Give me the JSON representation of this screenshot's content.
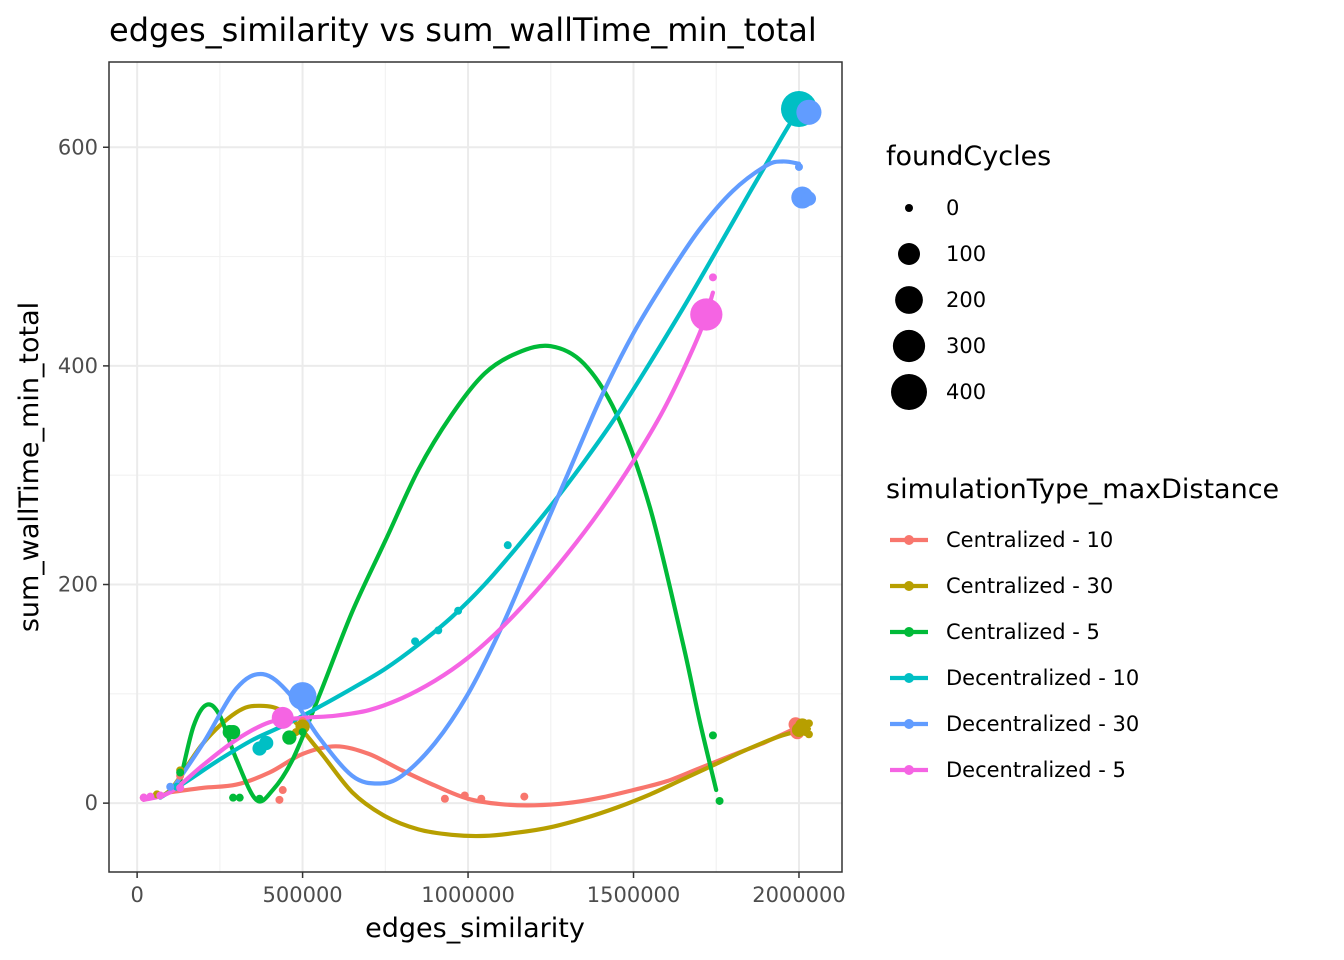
{
  "chart_data": {
    "type": "scatter",
    "title": "edges_similarity  vs  sum_wallTime_min_total",
    "xlabel": "edges_similarity",
    "ylabel": "sum_wallTime_min_total",
    "xlim": [
      -85000,
      2130000
    ],
    "ylim": [
      -63,
      678
    ],
    "x_ticks": [
      0,
      500000,
      1000000,
      1500000,
      2000000
    ],
    "x_tick_labels": [
      "0",
      "500000",
      "1000000",
      "1500000",
      "2000000"
    ],
    "y_ticks": [
      0,
      200,
      400,
      600
    ],
    "y_tick_labels": [
      "0",
      "200",
      "400",
      "600"
    ],
    "grid": true,
    "legend_position": "right",
    "size_legend": {
      "title": "foundCycles",
      "values": [
        0,
        100,
        200,
        300,
        400
      ],
      "labels": [
        "0",
        "100",
        "200",
        "300",
        "400"
      ]
    },
    "color_legend": {
      "title": "simulationType_maxDistance"
    },
    "series": [
      {
        "name": "Centralized - 10",
        "color": "#F8766D",
        "points": [
          [
            20000,
            5,
            0
          ],
          [
            130000,
            25,
            0
          ],
          [
            430000,
            3,
            0
          ],
          [
            440000,
            12,
            0
          ],
          [
            500000,
            75,
            0
          ],
          [
            930000,
            4,
            0
          ],
          [
            990000,
            7,
            0
          ],
          [
            1040000,
            4,
            0
          ],
          [
            1170000,
            6,
            0
          ],
          [
            1990000,
            72,
            20
          ],
          [
            1995000,
            65,
            20
          ]
        ],
        "smooth": [
          [
            100000,
            10
          ],
          [
            200000,
            14
          ],
          [
            300000,
            17
          ],
          [
            400000,
            28
          ],
          [
            500000,
            45
          ],
          [
            600000,
            52
          ],
          [
            700000,
            45
          ],
          [
            800000,
            30
          ],
          [
            900000,
            16
          ],
          [
            1000000,
            4
          ],
          [
            1100000,
            -1
          ],
          [
            1200000,
            -2
          ],
          [
            1300000,
            0
          ],
          [
            1400000,
            5
          ],
          [
            1500000,
            12
          ],
          [
            1600000,
            20
          ],
          [
            1700000,
            32
          ],
          [
            1800000,
            44
          ],
          [
            1900000,
            56
          ],
          [
            2000000,
            70
          ]
        ]
      },
      {
        "name": "Centralized - 30",
        "color": "#B79F00",
        "points": [
          [
            60000,
            8,
            0
          ],
          [
            130000,
            30,
            0
          ],
          [
            480000,
            65,
            0
          ],
          [
            500000,
            70,
            20
          ],
          [
            2000000,
            67,
            20
          ],
          [
            2010000,
            71,
            20
          ],
          [
            2020000,
            65,
            0
          ],
          [
            2030000,
            73,
            0
          ],
          [
            2030000,
            63,
            0
          ]
        ],
        "smooth": [
          [
            40000,
            5
          ],
          [
            100000,
            12
          ],
          [
            200000,
            55
          ],
          [
            300000,
            83
          ],
          [
            370000,
            89
          ],
          [
            450000,
            82
          ],
          [
            550000,
            48
          ],
          [
            650000,
            10
          ],
          [
            750000,
            -12
          ],
          [
            850000,
            -24
          ],
          [
            950000,
            -29
          ],
          [
            1050000,
            -30
          ],
          [
            1150000,
            -27
          ],
          [
            1250000,
            -22
          ],
          [
            1350000,
            -14
          ],
          [
            1450000,
            -4
          ],
          [
            1550000,
            8
          ],
          [
            1650000,
            22
          ],
          [
            1750000,
            36
          ],
          [
            1850000,
            50
          ],
          [
            1950000,
            62
          ],
          [
            2030000,
            68
          ]
        ]
      },
      {
        "name": "Centralized - 5",
        "color": "#00BA38",
        "points": [
          [
            130000,
            28,
            0
          ],
          [
            280000,
            65,
            20
          ],
          [
            290000,
            65,
            20
          ],
          [
            290000,
            5,
            0
          ],
          [
            310000,
            5,
            0
          ],
          [
            370000,
            4,
            0
          ],
          [
            460000,
            60,
            20
          ],
          [
            500000,
            65,
            0
          ],
          [
            1740000,
            62,
            0
          ],
          [
            1760000,
            2,
            0
          ]
        ],
        "smooth": [
          [
            130000,
            20
          ],
          [
            170000,
            70
          ],
          [
            210000,
            90
          ],
          [
            250000,
            80
          ],
          [
            300000,
            40
          ],
          [
            360000,
            3
          ],
          [
            410000,
            12
          ],
          [
            470000,
            40
          ],
          [
            550000,
            98
          ],
          [
            650000,
            175
          ],
          [
            750000,
            240
          ],
          [
            850000,
            305
          ],
          [
            950000,
            355
          ],
          [
            1050000,
            393
          ],
          [
            1150000,
            412
          ],
          [
            1250000,
            418
          ],
          [
            1350000,
            402
          ],
          [
            1450000,
            355
          ],
          [
            1550000,
            270
          ],
          [
            1650000,
            145
          ],
          [
            1700000,
            75
          ],
          [
            1750000,
            12
          ]
        ]
      },
      {
        "name": "Decentralized - 10",
        "color": "#00BFC4",
        "points": [
          [
            120000,
            15,
            0
          ],
          [
            370000,
            50,
            20
          ],
          [
            390000,
            55,
            20
          ],
          [
            840000,
            148,
            0
          ],
          [
            910000,
            158,
            0
          ],
          [
            970000,
            176,
            0
          ],
          [
            1120000,
            236,
            0
          ],
          [
            2000000,
            635,
            400
          ]
        ],
        "smooth": [
          [
            70000,
            5
          ],
          [
            150000,
            20
          ],
          [
            250000,
            40
          ],
          [
            350000,
            58
          ],
          [
            450000,
            72
          ],
          [
            550000,
            88
          ],
          [
            650000,
            105
          ],
          [
            750000,
            123
          ],
          [
            850000,
            145
          ],
          [
            950000,
            170
          ],
          [
            1050000,
            200
          ],
          [
            1150000,
            235
          ],
          [
            1250000,
            272
          ],
          [
            1350000,
            312
          ],
          [
            1450000,
            355
          ],
          [
            1550000,
            403
          ],
          [
            1650000,
            453
          ],
          [
            1750000,
            505
          ],
          [
            1850000,
            558
          ],
          [
            1950000,
            610
          ],
          [
            2000000,
            635
          ]
        ]
      },
      {
        "name": "Decentralized - 30",
        "color": "#619CFF",
        "points": [
          [
            100000,
            15,
            0
          ],
          [
            500000,
            98,
            200
          ],
          [
            2000000,
            582,
            0
          ],
          [
            2010000,
            554,
            100
          ],
          [
            2020000,
            555,
            20
          ],
          [
            2030000,
            553,
            20
          ],
          [
            2030000,
            632,
            150
          ]
        ],
        "smooth": [
          [
            100000,
            10
          ],
          [
            200000,
            55
          ],
          [
            300000,
            105
          ],
          [
            380000,
            118
          ],
          [
            460000,
            100
          ],
          [
            550000,
            60
          ],
          [
            650000,
            25
          ],
          [
            730000,
            18
          ],
          [
            800000,
            25
          ],
          [
            900000,
            55
          ],
          [
            1000000,
            100
          ],
          [
            1100000,
            160
          ],
          [
            1200000,
            230
          ],
          [
            1300000,
            300
          ],
          [
            1400000,
            370
          ],
          [
            1500000,
            430
          ],
          [
            1600000,
            480
          ],
          [
            1700000,
            525
          ],
          [
            1800000,
            560
          ],
          [
            1900000,
            583
          ],
          [
            1950000,
            587
          ],
          [
            2000000,
            585
          ]
        ]
      },
      {
        "name": "Decentralized - 5",
        "color": "#F564E3",
        "points": [
          [
            20000,
            5,
            0
          ],
          [
            40000,
            6,
            0
          ],
          [
            70000,
            7,
            0
          ],
          [
            130000,
            14,
            0
          ],
          [
            440000,
            78,
            100
          ],
          [
            1720000,
            447,
            300
          ],
          [
            1740000,
            481,
            0
          ]
        ],
        "smooth": [
          [
            20000,
            3
          ],
          [
            100000,
            10
          ],
          [
            200000,
            35
          ],
          [
            300000,
            58
          ],
          [
            400000,
            74
          ],
          [
            500000,
            78
          ],
          [
            600000,
            80
          ],
          [
            700000,
            85
          ],
          [
            800000,
            96
          ],
          [
            900000,
            112
          ],
          [
            1000000,
            133
          ],
          [
            1100000,
            160
          ],
          [
            1200000,
            192
          ],
          [
            1300000,
            228
          ],
          [
            1400000,
            268
          ],
          [
            1500000,
            313
          ],
          [
            1600000,
            365
          ],
          [
            1700000,
            430
          ],
          [
            1740000,
            467
          ]
        ]
      }
    ]
  }
}
